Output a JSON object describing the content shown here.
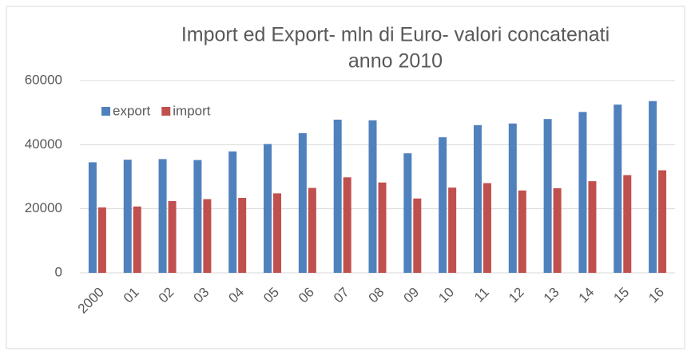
{
  "chart_data": {
    "type": "bar",
    "title": [
      "Import ed Export- mln di Euro- valori concatenati",
      "anno 2010"
    ],
    "categories": [
      "2000",
      "01",
      "02",
      "03",
      "04",
      "05",
      "06",
      "07",
      "08",
      "09",
      "10",
      "11",
      "12",
      "13",
      "14",
      "15",
      "16"
    ],
    "series": [
      {
        "name": "export",
        "color": "#4f81bd",
        "values": [
          34500,
          35300,
          35500,
          35200,
          37900,
          40200,
          43600,
          47800,
          47600,
          37300,
          42300,
          46100,
          46600,
          48000,
          50200,
          52500,
          53600
        ]
      },
      {
        "name": "import",
        "color": "#c0504d",
        "values": [
          20400,
          20700,
          22400,
          23000,
          23400,
          24800,
          26500,
          29800,
          28200,
          23200,
          26600,
          28000,
          25700,
          26400,
          28600,
          30500,
          32000
        ]
      }
    ],
    "ylim": [
      0,
      60000
    ],
    "yticks": [
      0,
      20000,
      40000,
      60000
    ],
    "grid": true,
    "legend": "top-left"
  }
}
